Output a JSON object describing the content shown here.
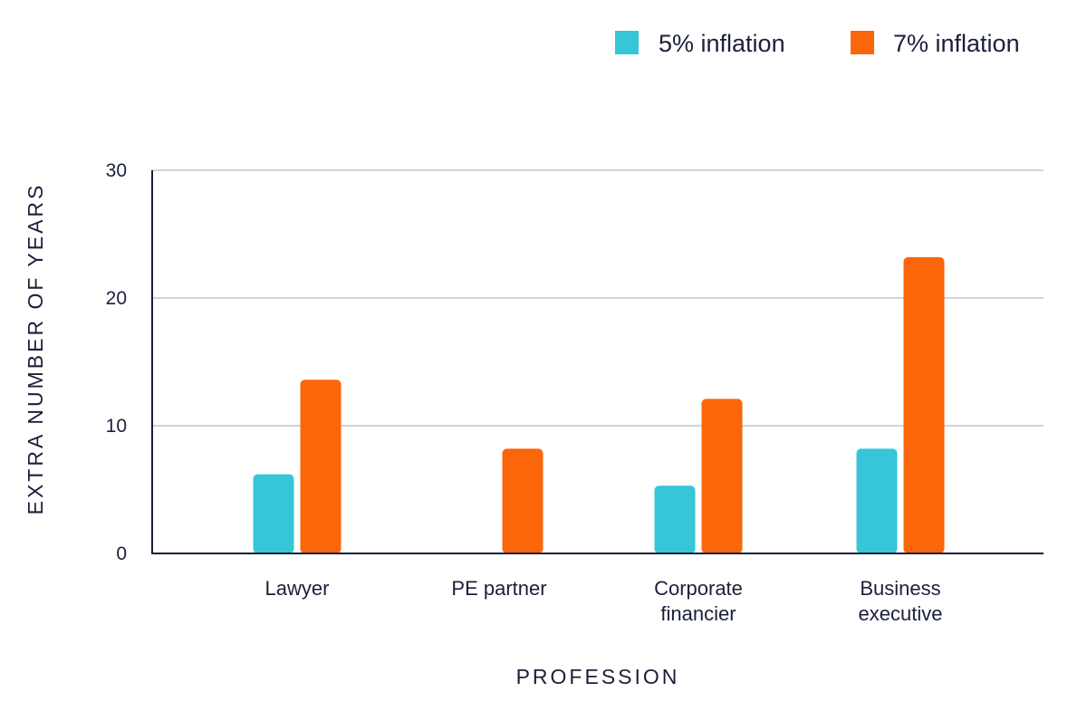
{
  "chart_data": {
    "type": "bar",
    "title": "",
    "xlabel": "PROFESSION",
    "ylabel": "EXTRA NUMBER OF YEARS",
    "categories": [
      [
        "Lawyer"
      ],
      [
        "PE partner"
      ],
      [
        "Corporate",
        "financier"
      ],
      [
        "Business",
        "executive"
      ]
    ],
    "series": [
      {
        "name": "5% inflation",
        "color": "#36c6d8",
        "values": [
          6.2,
          null,
          5.3,
          8.2
        ]
      },
      {
        "name": "7% inflation",
        "color": "#fa6609",
        "values": [
          13.6,
          8.2,
          12.1,
          23.2
        ]
      }
    ],
    "ylim": [
      0,
      30
    ],
    "yticks": [
      0,
      10,
      20,
      30
    ],
    "grid": true,
    "legend_position": "top-right"
  }
}
